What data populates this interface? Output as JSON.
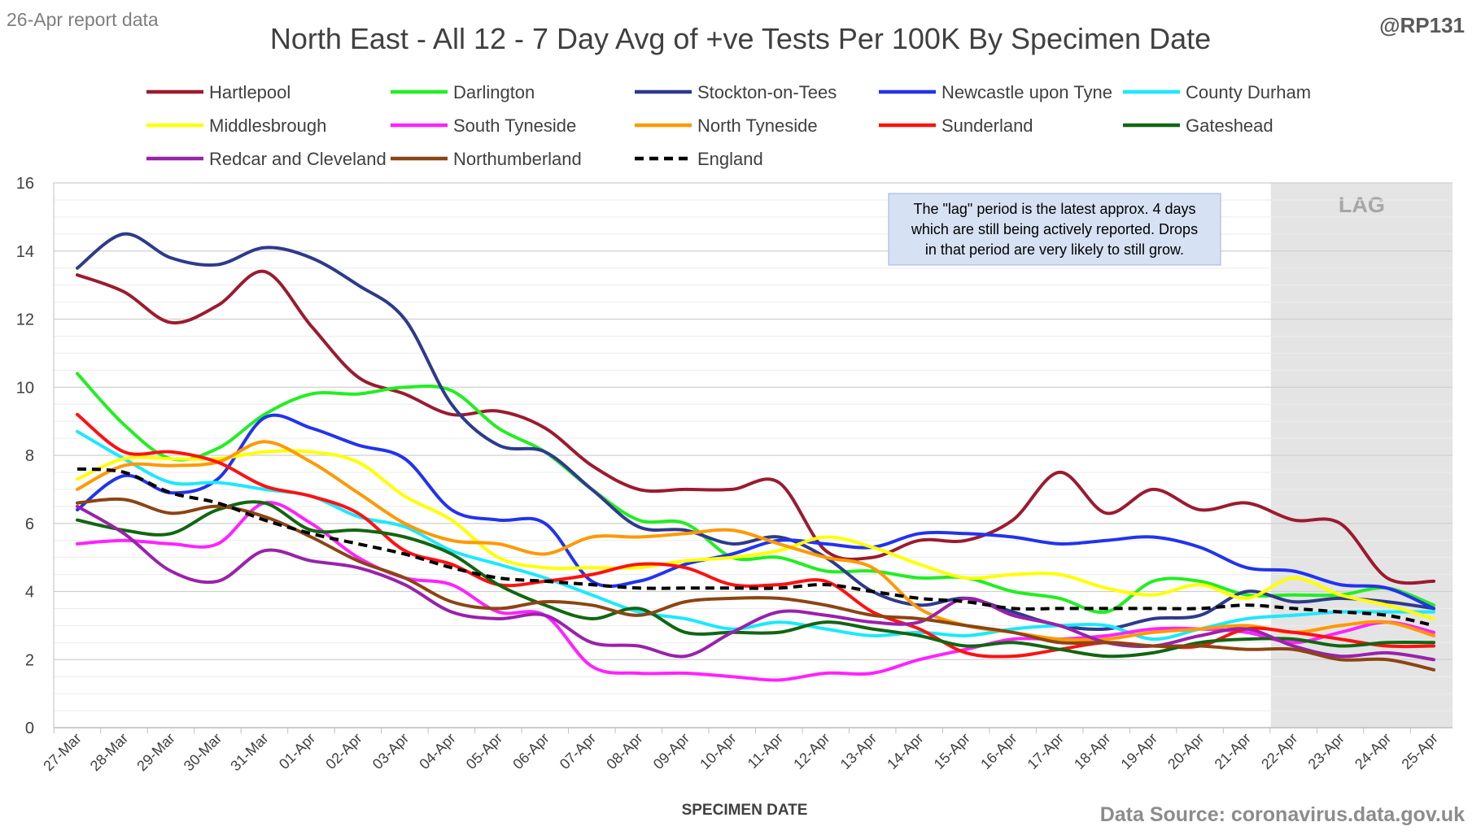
{
  "header": {
    "report_label": "26-Apr report data",
    "handle": "@RP131",
    "source": "Data Source: coronavirus.data.gov.uk"
  },
  "annotation": {
    "lines": [
      "The \"lag\" period is the latest approx. 4 days",
      "which are still being actively reported.  Drops",
      "in that period are very likely to still grow."
    ]
  },
  "chart_data": {
    "type": "line",
    "title": "North East - All 12 - 7 Day Avg of +ve Tests Per 100K By Specimen Date",
    "xlabel": "SPECIMEN DATE",
    "ylabel": "",
    "ylim": [
      0,
      16
    ],
    "yticks": [
      0,
      2,
      4,
      6,
      8,
      10,
      12,
      14,
      16
    ],
    "grid": true,
    "minor_grid": true,
    "legend_position": "top",
    "lag_region": {
      "label": "LAG",
      "from": "22-Apr",
      "to": "25-Apr",
      "color": "#e4e4e4"
    },
    "categories": [
      "27-Mar",
      "28-Mar",
      "29-Mar",
      "30-Mar",
      "31-Mar",
      "01-Apr",
      "02-Apr",
      "03-Apr",
      "04-Apr",
      "05-Apr",
      "06-Apr",
      "07-Apr",
      "08-Apr",
      "09-Apr",
      "10-Apr",
      "11-Apr",
      "12-Apr",
      "13-Apr",
      "14-Apr",
      "15-Apr",
      "16-Apr",
      "17-Apr",
      "18-Apr",
      "19-Apr",
      "20-Apr",
      "21-Apr",
      "22-Apr",
      "23-Apr",
      "24-Apr",
      "25-Apr"
    ],
    "series": [
      {
        "name": "Hartlepool",
        "color": "#9b1b30",
        "dash": false,
        "values": [
          13.3,
          12.8,
          11.9,
          12.4,
          13.4,
          11.8,
          10.3,
          9.8,
          9.2,
          9.3,
          8.8,
          7.7,
          7.0,
          7.0,
          7.0,
          7.2,
          5.2,
          5.0,
          5.5,
          5.5,
          6.1,
          7.5,
          6.3,
          7.0,
          6.4,
          6.6,
          6.1,
          6.0,
          4.4,
          4.3
        ]
      },
      {
        "name": "Darlington",
        "color": "#22ee22",
        "dash": false,
        "values": [
          10.4,
          8.9,
          7.9,
          8.2,
          9.2,
          9.8,
          9.8,
          10.0,
          9.9,
          8.8,
          8.1,
          7.0,
          6.1,
          6.0,
          5.0,
          5.0,
          4.6,
          4.6,
          4.4,
          4.4,
          4.0,
          3.8,
          3.4,
          4.3,
          4.3,
          3.9,
          3.9,
          3.9,
          4.1,
          3.6
        ]
      },
      {
        "name": "Stockton-on-Tees",
        "color": "#2e3a8c",
        "dash": false,
        "values": [
          13.5,
          14.5,
          13.8,
          13.6,
          14.1,
          13.8,
          13.0,
          12.0,
          9.5,
          8.3,
          8.1,
          7.0,
          5.9,
          5.8,
          5.4,
          5.6,
          5.0,
          4.0,
          3.6,
          3.8,
          3.4,
          3.0,
          2.9,
          3.2,
          3.3,
          4.0,
          3.7,
          3.8,
          3.7,
          3.5
        ]
      },
      {
        "name": "Newcastle upon Tyne",
        "color": "#2233ee",
        "dash": false,
        "values": [
          6.4,
          7.4,
          6.9,
          7.3,
          9.1,
          8.8,
          8.3,
          7.9,
          6.4,
          6.1,
          6.0,
          4.3,
          4.3,
          4.8,
          5.1,
          5.5,
          5.4,
          5.3,
          5.7,
          5.7,
          5.6,
          5.4,
          5.5,
          5.6,
          5.3,
          4.7,
          4.6,
          4.2,
          4.1,
          3.5
        ]
      },
      {
        "name": "County Durham",
        "color": "#1ce8ff",
        "dash": false,
        "values": [
          8.7,
          7.9,
          7.2,
          7.2,
          7.0,
          6.8,
          6.2,
          5.9,
          5.2,
          4.8,
          4.4,
          3.9,
          3.4,
          3.2,
          2.9,
          3.1,
          2.9,
          2.7,
          2.8,
          2.7,
          2.9,
          3.0,
          3.0,
          2.6,
          2.9,
          3.2,
          3.3,
          3.4,
          3.4,
          3.4
        ]
      },
      {
        "name": "Middlesbrough",
        "color": "#ffff00",
        "dash": false,
        "values": [
          7.3,
          7.9,
          7.9,
          7.9,
          8.1,
          8.1,
          7.8,
          6.8,
          6.1,
          5.0,
          4.7,
          4.7,
          4.7,
          4.9,
          5.0,
          5.2,
          5.6,
          5.3,
          4.8,
          4.4,
          4.5,
          4.5,
          4.1,
          3.9,
          4.2,
          3.8,
          4.4,
          3.9,
          3.6,
          3.2
        ]
      },
      {
        "name": "South Tyneside",
        "color": "#ff22ff",
        "dash": false,
        "values": [
          5.4,
          5.5,
          5.4,
          5.4,
          6.6,
          6.0,
          5.0,
          4.4,
          4.2,
          3.4,
          3.3,
          1.8,
          1.6,
          1.6,
          1.5,
          1.4,
          1.6,
          1.6,
          2.0,
          2.3,
          2.6,
          2.6,
          2.7,
          2.9,
          2.9,
          2.8,
          2.5,
          2.8,
          3.1,
          2.8
        ]
      },
      {
        "name": "North Tyneside",
        "color": "#ff9900",
        "dash": false,
        "values": [
          7.0,
          7.7,
          7.7,
          7.8,
          8.4,
          7.8,
          6.9,
          6.0,
          5.5,
          5.4,
          5.1,
          5.6,
          5.6,
          5.7,
          5.8,
          5.4,
          5.0,
          4.7,
          3.5,
          3.0,
          2.8,
          2.6,
          2.6,
          2.8,
          2.9,
          3.0,
          2.8,
          3.0,
          3.1,
          2.7
        ]
      },
      {
        "name": "Sunderland",
        "color": "#ff1111",
        "dash": false,
        "values": [
          9.2,
          8.1,
          8.1,
          7.8,
          7.1,
          6.8,
          6.3,
          5.2,
          4.8,
          4.2,
          4.3,
          4.5,
          4.8,
          4.7,
          4.2,
          4.2,
          4.3,
          3.4,
          2.9,
          2.2,
          2.1,
          2.3,
          2.5,
          2.4,
          2.4,
          2.9,
          2.8,
          2.6,
          2.4,
          2.4
        ]
      },
      {
        "name": "Gateshead",
        "color": "#116611",
        "dash": false,
        "values": [
          6.1,
          5.8,
          5.7,
          6.4,
          6.6,
          5.8,
          5.8,
          5.6,
          5.1,
          4.2,
          3.6,
          3.2,
          3.5,
          2.8,
          2.8,
          2.8,
          3.1,
          2.9,
          2.7,
          2.4,
          2.5,
          2.3,
          2.1,
          2.2,
          2.5,
          2.6,
          2.6,
          2.4,
          2.5,
          2.5
        ]
      },
      {
        "name": "Redcar and Cleveland",
        "color": "#9922aa",
        "dash": false,
        "values": [
          6.5,
          5.7,
          4.6,
          4.3,
          5.2,
          4.9,
          4.7,
          4.2,
          3.4,
          3.2,
          3.3,
          2.5,
          2.4,
          2.1,
          2.8,
          3.4,
          3.3,
          3.1,
          3.1,
          3.8,
          3.3,
          3.0,
          2.5,
          2.4,
          2.7,
          2.9,
          2.4,
          2.1,
          2.2,
          2.0
        ]
      },
      {
        "name": "Northumberland",
        "color": "#8b4513",
        "dash": false,
        "values": [
          6.6,
          6.7,
          6.3,
          6.5,
          6.2,
          5.6,
          4.9,
          4.4,
          3.7,
          3.5,
          3.7,
          3.6,
          3.3,
          3.7,
          3.8,
          3.8,
          3.6,
          3.3,
          3.2,
          3.0,
          2.8,
          2.5,
          2.5,
          2.4,
          2.4,
          2.3,
          2.3,
          2.0,
          2.0,
          1.7
        ]
      },
      {
        "name": "England",
        "color": "#000000",
        "dash": true,
        "values": [
          7.6,
          7.5,
          6.9,
          6.6,
          6.1,
          5.7,
          5.4,
          5.1,
          4.7,
          4.4,
          4.3,
          4.2,
          4.1,
          4.1,
          4.1,
          4.1,
          4.2,
          4.0,
          3.8,
          3.7,
          3.5,
          3.5,
          3.5,
          3.5,
          3.5,
          3.6,
          3.5,
          3.4,
          3.3,
          3.0
        ]
      }
    ]
  }
}
